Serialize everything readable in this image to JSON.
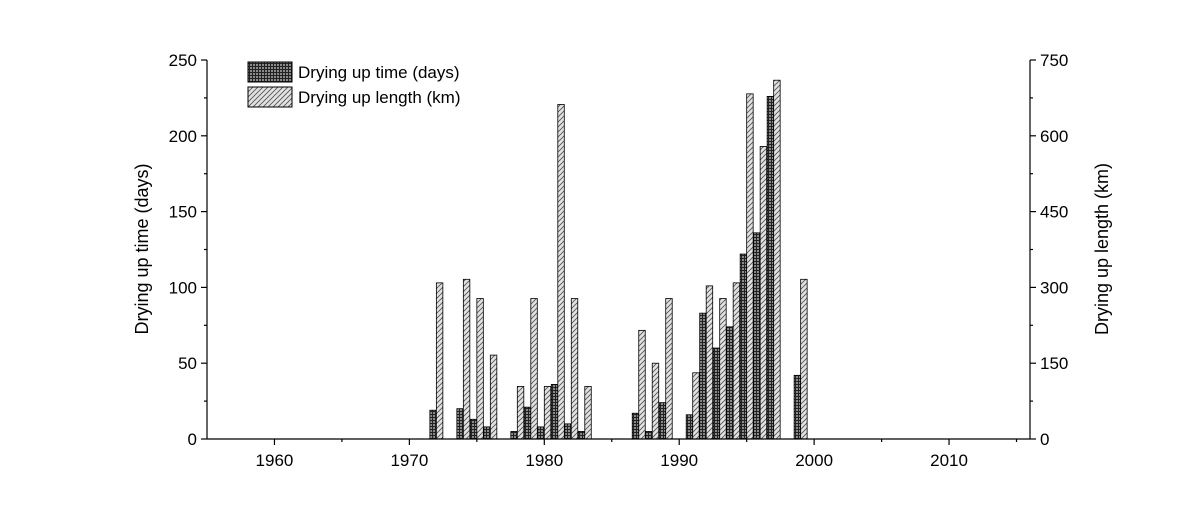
{
  "chart_data": {
    "type": "bar",
    "x_axis": {
      "range": [
        1955,
        2016
      ],
      "ticks": [
        1960,
        1970,
        1980,
        1990,
        2000,
        2010
      ],
      "tick_labels": [
        "1960",
        "1970",
        "1980",
        "1990",
        "2000",
        "2010"
      ]
    },
    "y_left": {
      "label": "Drying up time (days)",
      "range": [
        0,
        250
      ],
      "ticks": [
        0,
        50,
        100,
        150,
        200,
        250
      ],
      "tick_labels": [
        "0",
        "50",
        "100",
        "150",
        "200",
        "250"
      ]
    },
    "y_right": {
      "label": "Drying up length (km)",
      "range": [
        0,
        750
      ],
      "ticks": [
        0,
        150,
        300,
        450,
        600,
        750
      ],
      "tick_labels": [
        "0",
        "150",
        "300",
        "450",
        "600",
        "750"
      ]
    },
    "legend_position": "top-left",
    "series": [
      {
        "name": "Drying up time (days)",
        "axis": "left",
        "pattern": "crosshatch",
        "color": "#555555",
        "points": [
          [
            1972,
            19
          ],
          [
            1974,
            20
          ],
          [
            1975,
            13
          ],
          [
            1976,
            8
          ],
          [
            1978,
            5
          ],
          [
            1979,
            21
          ],
          [
            1980,
            8
          ],
          [
            1981,
            36
          ],
          [
            1982,
            10
          ],
          [
            1983,
            5
          ],
          [
            1987,
            17
          ],
          [
            1988,
            5
          ],
          [
            1989,
            24
          ],
          [
            1991,
            16
          ],
          [
            1992,
            83
          ],
          [
            1993,
            60
          ],
          [
            1994,
            74
          ],
          [
            1995,
            122
          ],
          [
            1996,
            136
          ],
          [
            1997,
            226
          ],
          [
            1999,
            42
          ]
        ]
      },
      {
        "name": "Drying up length (km)",
        "axis": "right",
        "pattern": "diagonal",
        "color": "#c8c8c8",
        "points": [
          [
            1972,
            309
          ],
          [
            1974,
            316
          ],
          [
            1975,
            278
          ],
          [
            1976,
            166
          ],
          [
            1978,
            104
          ],
          [
            1979,
            278
          ],
          [
            1980,
            104
          ],
          [
            1981,
            662
          ],
          [
            1982,
            278
          ],
          [
            1983,
            104
          ],
          [
            1987,
            215
          ],
          [
            1988,
            150
          ],
          [
            1989,
            278
          ],
          [
            1991,
            131
          ],
          [
            1992,
            303
          ],
          [
            1993,
            278
          ],
          [
            1994,
            309
          ],
          [
            1995,
            683
          ],
          [
            1996,
            579
          ],
          [
            1997,
            710
          ],
          [
            1999,
            316
          ]
        ]
      }
    ]
  }
}
